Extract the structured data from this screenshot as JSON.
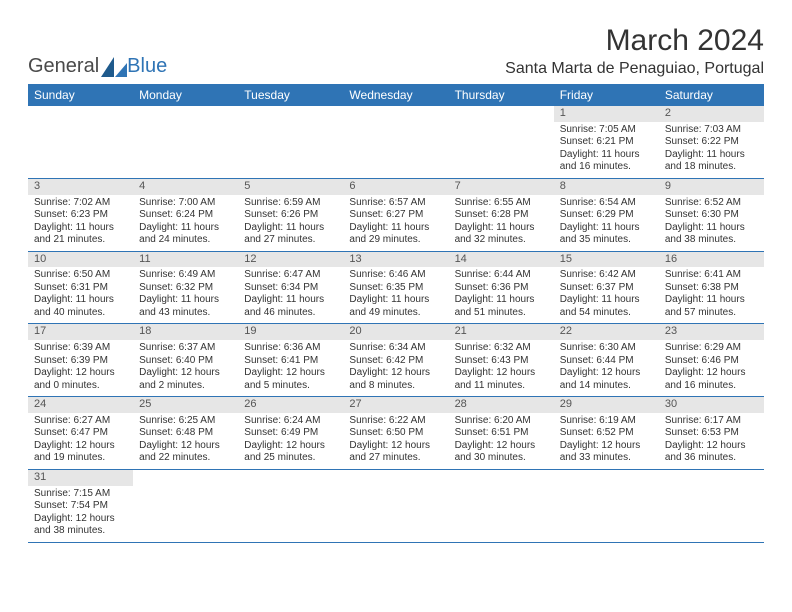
{
  "logo": {
    "text_general": "General",
    "text_blue": "Blue"
  },
  "title": "March 2024",
  "location": "Santa Marta de Penaguiao, Portugal",
  "weekdays": [
    "Sunday",
    "Monday",
    "Tuesday",
    "Wednesday",
    "Thursday",
    "Friday",
    "Saturday"
  ],
  "colors": {
    "header_bg": "#2f74b5",
    "header_text": "#ffffff",
    "daynum_bg": "#e6e6e6",
    "border": "#2f74b5",
    "text": "#333333"
  },
  "layout": {
    "cols": 7,
    "rows": 6,
    "start_day_index": 5,
    "days_in_month": 31
  },
  "days": [
    {
      "n": 1,
      "sunrise": "7:05 AM",
      "sunset": "6:21 PM",
      "daylight": "11 hours and 16 minutes."
    },
    {
      "n": 2,
      "sunrise": "7:03 AM",
      "sunset": "6:22 PM",
      "daylight": "11 hours and 18 minutes."
    },
    {
      "n": 3,
      "sunrise": "7:02 AM",
      "sunset": "6:23 PM",
      "daylight": "11 hours and 21 minutes."
    },
    {
      "n": 4,
      "sunrise": "7:00 AM",
      "sunset": "6:24 PM",
      "daylight": "11 hours and 24 minutes."
    },
    {
      "n": 5,
      "sunrise": "6:59 AM",
      "sunset": "6:26 PM",
      "daylight": "11 hours and 27 minutes."
    },
    {
      "n": 6,
      "sunrise": "6:57 AM",
      "sunset": "6:27 PM",
      "daylight": "11 hours and 29 minutes."
    },
    {
      "n": 7,
      "sunrise": "6:55 AM",
      "sunset": "6:28 PM",
      "daylight": "11 hours and 32 minutes."
    },
    {
      "n": 8,
      "sunrise": "6:54 AM",
      "sunset": "6:29 PM",
      "daylight": "11 hours and 35 minutes."
    },
    {
      "n": 9,
      "sunrise": "6:52 AM",
      "sunset": "6:30 PM",
      "daylight": "11 hours and 38 minutes."
    },
    {
      "n": 10,
      "sunrise": "6:50 AM",
      "sunset": "6:31 PM",
      "daylight": "11 hours and 40 minutes."
    },
    {
      "n": 11,
      "sunrise": "6:49 AM",
      "sunset": "6:32 PM",
      "daylight": "11 hours and 43 minutes."
    },
    {
      "n": 12,
      "sunrise": "6:47 AM",
      "sunset": "6:34 PM",
      "daylight": "11 hours and 46 minutes."
    },
    {
      "n": 13,
      "sunrise": "6:46 AM",
      "sunset": "6:35 PM",
      "daylight": "11 hours and 49 minutes."
    },
    {
      "n": 14,
      "sunrise": "6:44 AM",
      "sunset": "6:36 PM",
      "daylight": "11 hours and 51 minutes."
    },
    {
      "n": 15,
      "sunrise": "6:42 AM",
      "sunset": "6:37 PM",
      "daylight": "11 hours and 54 minutes."
    },
    {
      "n": 16,
      "sunrise": "6:41 AM",
      "sunset": "6:38 PM",
      "daylight": "11 hours and 57 minutes."
    },
    {
      "n": 17,
      "sunrise": "6:39 AM",
      "sunset": "6:39 PM",
      "daylight": "12 hours and 0 minutes."
    },
    {
      "n": 18,
      "sunrise": "6:37 AM",
      "sunset": "6:40 PM",
      "daylight": "12 hours and 2 minutes."
    },
    {
      "n": 19,
      "sunrise": "6:36 AM",
      "sunset": "6:41 PM",
      "daylight": "12 hours and 5 minutes."
    },
    {
      "n": 20,
      "sunrise": "6:34 AM",
      "sunset": "6:42 PM",
      "daylight": "12 hours and 8 minutes."
    },
    {
      "n": 21,
      "sunrise": "6:32 AM",
      "sunset": "6:43 PM",
      "daylight": "12 hours and 11 minutes."
    },
    {
      "n": 22,
      "sunrise": "6:30 AM",
      "sunset": "6:44 PM",
      "daylight": "12 hours and 14 minutes."
    },
    {
      "n": 23,
      "sunrise": "6:29 AM",
      "sunset": "6:46 PM",
      "daylight": "12 hours and 16 minutes."
    },
    {
      "n": 24,
      "sunrise": "6:27 AM",
      "sunset": "6:47 PM",
      "daylight": "12 hours and 19 minutes."
    },
    {
      "n": 25,
      "sunrise": "6:25 AM",
      "sunset": "6:48 PM",
      "daylight": "12 hours and 22 minutes."
    },
    {
      "n": 26,
      "sunrise": "6:24 AM",
      "sunset": "6:49 PM",
      "daylight": "12 hours and 25 minutes."
    },
    {
      "n": 27,
      "sunrise": "6:22 AM",
      "sunset": "6:50 PM",
      "daylight": "12 hours and 27 minutes."
    },
    {
      "n": 28,
      "sunrise": "6:20 AM",
      "sunset": "6:51 PM",
      "daylight": "12 hours and 30 minutes."
    },
    {
      "n": 29,
      "sunrise": "6:19 AM",
      "sunset": "6:52 PM",
      "daylight": "12 hours and 33 minutes."
    },
    {
      "n": 30,
      "sunrise": "6:17 AM",
      "sunset": "6:53 PM",
      "daylight": "12 hours and 36 minutes."
    },
    {
      "n": 31,
      "sunrise": "7:15 AM",
      "sunset": "7:54 PM",
      "daylight": "12 hours and 38 minutes."
    }
  ],
  "labels": {
    "sunrise": "Sunrise:",
    "sunset": "Sunset:",
    "daylight": "Daylight:"
  }
}
